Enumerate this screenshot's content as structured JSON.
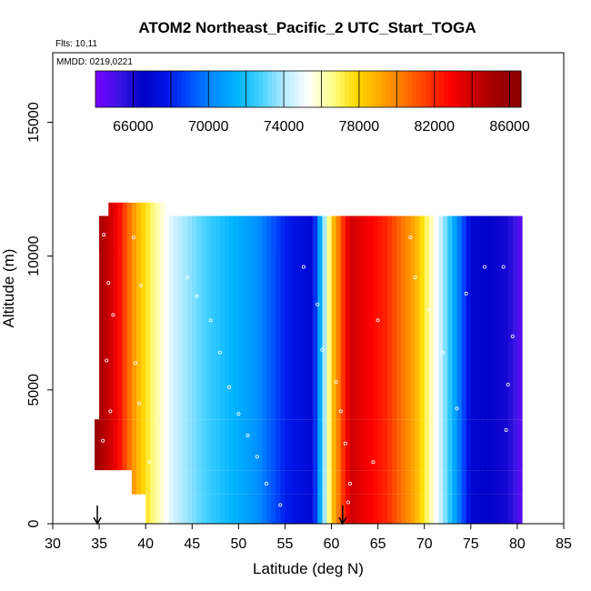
{
  "chart_data": {
    "type": "heatmap",
    "title": "ATOM2 Northeast_Pacific_2 UTC_Start_TOGA",
    "subtitle_lines": [
      "Flts: 10,11",
      "MMDD: 0219,0221"
    ],
    "xlabel": "Latitude (deg N)",
    "ylabel": "Altitude (m)",
    "xlim": [
      30,
      85
    ],
    "ylim": [
      0,
      17600
    ],
    "x_ticks": [
      "30",
      "35",
      "40",
      "45",
      "50",
      "55",
      "60",
      "65",
      "70",
      "75",
      "80",
      "85"
    ],
    "y_ticks": [
      "0",
      "5000",
      "10000",
      "15000"
    ],
    "colorbar": {
      "min": 64000,
      "max": 86600,
      "ticks": [
        "66000",
        "70000",
        "74000",
        "78000",
        "82000",
        "86000"
      ],
      "palette": [
        "#7b00ff",
        "#3b14e6",
        "#0000c8",
        "#0014e6",
        "#0050ff",
        "#008cff",
        "#00b4ff",
        "#46d2ff",
        "#b4ebff",
        "#ffffff",
        "#ffff8c",
        "#ffdc00",
        "#ffaa00",
        "#ff7800",
        "#ff3c00",
        "#ff0000",
        "#c80000",
        "#a00000",
        "#8b0000"
      ]
    },
    "color_scale": [
      {
        "lat": 34.5,
        "value": 85800
      },
      {
        "lat": 37,
        "value": 83000
      },
      {
        "lat": 39,
        "value": 79000
      },
      {
        "lat": 40.5,
        "value": 77000
      },
      {
        "lat": 43,
        "value": 74500
      },
      {
        "lat": 47,
        "value": 72500
      },
      {
        "lat": 52,
        "value": 70500
      },
      {
        "lat": 55,
        "value": 68000
      },
      {
        "lat": 58,
        "value": 67000
      },
      {
        "lat": 60,
        "value": 78000
      },
      {
        "lat": 62,
        "value": 84000
      },
      {
        "lat": 66,
        "value": 82000
      },
      {
        "lat": 69,
        "value": 79000
      },
      {
        "lat": 72,
        "value": 74000
      },
      {
        "lat": 75,
        "value": 67000
      },
      {
        "lat": 79,
        "value": 66000
      },
      {
        "lat": 80.5,
        "value": 64500
      }
    ],
    "layers": [
      {
        "bottom": 0,
        "top": 1100,
        "lat_min": 40,
        "lat_max": 80.5
      },
      {
        "bottom": 1100,
        "top": 2000,
        "lat_min": 38.5,
        "lat_max": 80.5
      },
      {
        "bottom": 2000,
        "top": 3900,
        "lat_min": 34.5,
        "lat_max": 80.5
      },
      {
        "bottom": 3900,
        "top": 11500,
        "lat_min": 35,
        "lat_max": 80.5
      },
      {
        "bottom": 10200,
        "top": 11500,
        "lat_min": 35,
        "lat_max": 54
      },
      {
        "bottom": 11500,
        "top": 12000,
        "lat_min": 36,
        "lat_max": 42
      }
    ],
    "arrows_lat": [
      34.8,
      61.2
    ],
    "flight_points": [
      [
        35.5,
        10800
      ],
      [
        36,
        9000
      ],
      [
        36.5,
        7800
      ],
      [
        35.8,
        6100
      ],
      [
        36.2,
        4200
      ],
      [
        35.4,
        3100
      ],
      [
        35.6,
        1900
      ],
      [
        38.7,
        10700
      ],
      [
        39.5,
        8900
      ],
      [
        38.9,
        6000
      ],
      [
        39.3,
        4500
      ],
      [
        40.4,
        2300
      ],
      [
        44.5,
        9200
      ],
      [
        45.5,
        8500
      ],
      [
        47,
        7600
      ],
      [
        48,
        6400
      ],
      [
        49,
        5100
      ],
      [
        50,
        4100
      ],
      [
        51,
        3300
      ],
      [
        52,
        2500
      ],
      [
        53,
        1500
      ],
      [
        54.5,
        700
      ],
      [
        57,
        9600
      ],
      [
        58.5,
        8200
      ],
      [
        59,
        6500
      ],
      [
        60.5,
        5300
      ],
      [
        61,
        4200
      ],
      [
        61.5,
        3000
      ],
      [
        62,
        1500
      ],
      [
        61.8,
        800
      ],
      [
        65,
        7600
      ],
      [
        64.5,
        2300
      ],
      [
        68.5,
        10700
      ],
      [
        69,
        9200
      ],
      [
        70.5,
        8000
      ],
      [
        72,
        6400
      ],
      [
        73.5,
        4300
      ],
      [
        74.5,
        8600
      ],
      [
        76.5,
        9600
      ],
      [
        78.5,
        9600
      ],
      [
        79.5,
        7000
      ],
      [
        79,
        5200
      ],
      [
        78.8,
        3500
      ]
    ]
  }
}
